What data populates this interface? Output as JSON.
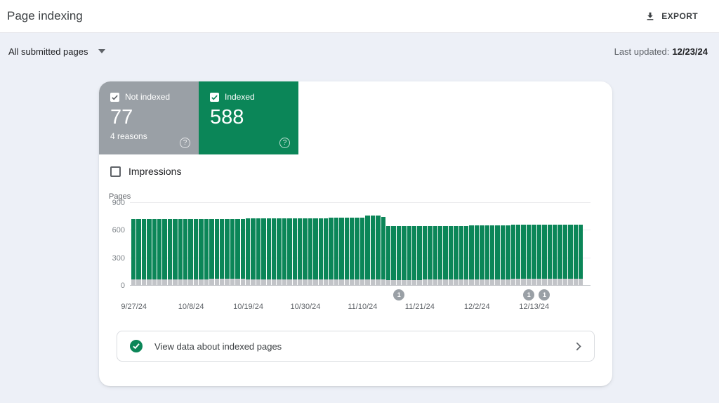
{
  "header": {
    "title": "Page indexing",
    "export_label": "EXPORT"
  },
  "filter_bar": {
    "dropdown_label": "All submitted pages",
    "last_updated_label": "Last updated:",
    "last_updated_value": "12/23/24"
  },
  "summary_tiles": [
    {
      "label": "Not indexed",
      "value": "77",
      "sublabel": "4 reasons",
      "color": "#9aa0a6",
      "check_color": "#5f6368",
      "checked": true,
      "help_glyph": "?"
    },
    {
      "label": "Indexed",
      "value": "588",
      "sublabel": "",
      "color": "#0b8658",
      "check_color": "#0b8658",
      "checked": true,
      "help_glyph": "?"
    }
  ],
  "impressions_checkbox": {
    "label": "Impressions",
    "checked": false
  },
  "chart_data": {
    "type": "bar",
    "stacked": true,
    "ylabel": "Pages",
    "ylim": [
      0,
      900
    ],
    "yticks": [
      0,
      300,
      600,
      900
    ],
    "grid": true,
    "date_start": "9/27/24",
    "date_end": "12/22/24",
    "series": [
      {
        "name": "Not indexed",
        "color": "#c2c4c8"
      },
      {
        "name": "Indexed",
        "color": "#0b8658"
      }
    ],
    "indexed_values": [
      660,
      660,
      660,
      660,
      660,
      660,
      660,
      660,
      660,
      660,
      660,
      655,
      655,
      655,
      655,
      648,
      648,
      648,
      648,
      648,
      648,
      648,
      665,
      665,
      665,
      665,
      665,
      665,
      665,
      665,
      665,
      665,
      665,
      665,
      665,
      665,
      665,
      665,
      675,
      675,
      675,
      675,
      675,
      675,
      675,
      692,
      692,
      692,
      680,
      582,
      582,
      582,
      582,
      582,
      582,
      582,
      585,
      585,
      585,
      585,
      585,
      585,
      585,
      585,
      585,
      586,
      586,
      586,
      586,
      586,
      586,
      586,
      586,
      588,
      588,
      588,
      588,
      588,
      588,
      588,
      588,
      588,
      588,
      588,
      588,
      588,
      588
    ],
    "not_indexed_values": [
      65,
      65,
      65,
      65,
      65,
      65,
      65,
      65,
      65,
      65,
      65,
      72,
      72,
      72,
      72,
      80,
      80,
      80,
      80,
      80,
      80,
      80,
      65,
      65,
      65,
      65,
      65,
      65,
      65,
      65,
      65,
      65,
      65,
      65,
      65,
      65,
      65,
      65,
      65,
      65,
      65,
      65,
      65,
      65,
      65,
      68,
      68,
      68,
      68,
      63,
      63,
      63,
      63,
      63,
      63,
      63,
      65,
      65,
      65,
      65,
      65,
      65,
      65,
      65,
      65,
      70,
      70,
      70,
      70,
      70,
      70,
      70,
      70,
      77,
      77,
      77,
      77,
      77,
      77,
      77,
      77,
      77,
      77,
      77,
      77,
      77,
      77
    ],
    "xticks": [
      {
        "index": 0,
        "label": "9/27/24"
      },
      {
        "index": 11,
        "label": "10/8/24"
      },
      {
        "index": 22,
        "label": "10/19/24"
      },
      {
        "index": 33,
        "label": "10/30/24"
      },
      {
        "index": 44,
        "label": "11/10/24"
      },
      {
        "index": 55,
        "label": "11/21/24"
      },
      {
        "index": 66,
        "label": "12/2/24"
      },
      {
        "index": 77,
        "label": "12/13/24"
      }
    ],
    "annotations": [
      {
        "bar_index": 51,
        "label": "1"
      },
      {
        "bar_index": 76,
        "label": "1"
      },
      {
        "bar_index": 79,
        "label": "1"
      }
    ]
  },
  "footer_link": {
    "label": "View data about indexed pages"
  },
  "icons": {
    "export": "download-icon",
    "dropdown": "chevron-down-icon",
    "footer_left": "check-circle-icon",
    "footer_right": "chevron-right-icon",
    "tile_help": "help-icon"
  }
}
